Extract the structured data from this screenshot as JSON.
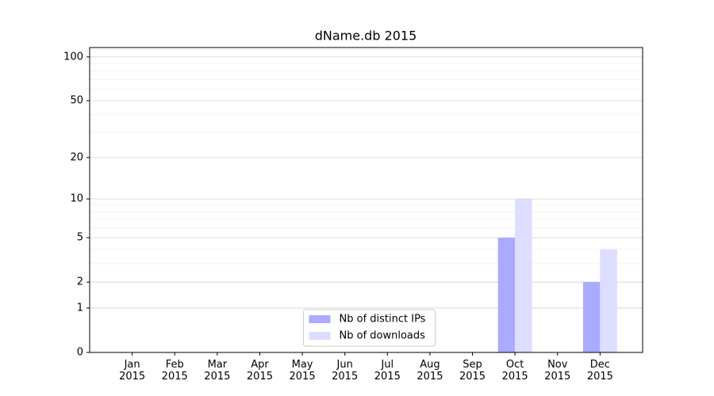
{
  "chart_data": {
    "type": "bar",
    "title": "dName.db 2015",
    "categories": [
      "Jan\n2015",
      "Feb\n2015",
      "Mar\n2015",
      "Apr\n2015",
      "May\n2015",
      "Jun\n2015",
      "Jul\n2015",
      "Aug\n2015",
      "Sep\n2015",
      "Oct\n2015",
      "Nov\n2015",
      "Dec\n2015"
    ],
    "series": [
      {
        "name": "Nb of distinct IPs",
        "color": "#aaaaff",
        "values": [
          0,
          0,
          0,
          0,
          0,
          0,
          0,
          0,
          0,
          5,
          0,
          2
        ]
      },
      {
        "name": "Nb of downloads",
        "color": "#ddddff",
        "values": [
          0,
          0,
          0,
          0,
          0,
          0,
          0,
          0,
          0,
          10,
          0,
          4
        ]
      }
    ],
    "yscale": "log1p",
    "ylim": [
      0,
      116
    ],
    "yticks": [
      0,
      1,
      2,
      5,
      10,
      20,
      50,
      100
    ],
    "minor_yticks": [
      3,
      4,
      6,
      7,
      8,
      9,
      30,
      40,
      60,
      70,
      80,
      90
    ],
    "grid": true,
    "legend": "lower center"
  }
}
